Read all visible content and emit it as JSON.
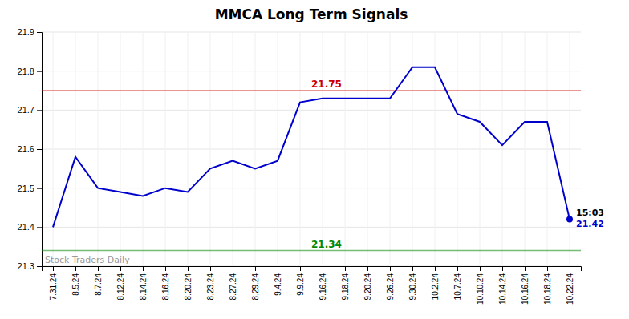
{
  "chart_data": {
    "type": "line",
    "title": "MMCA Long Term Signals",
    "categories": [
      "7.31.24",
      "8.5.24",
      "8.7.24",
      "8.12.24",
      "8.14.24",
      "8.16.24",
      "8.20.24",
      "8.23.24",
      "8.27.24",
      "8.29.24",
      "9.4.24",
      "9.9.24",
      "9.16.24",
      "9.18.24",
      "9.20.24",
      "9.26.24",
      "9.30.24",
      "10.2.24",
      "10.7.24",
      "10.10.24",
      "10.14.24",
      "10.16.24",
      "10.18.24",
      "10.22.24"
    ],
    "values": [
      21.4,
      21.58,
      21.5,
      21.49,
      21.48,
      21.5,
      21.49,
      21.55,
      21.57,
      21.55,
      21.57,
      21.72,
      21.73,
      21.73,
      21.73,
      21.73,
      21.81,
      21.81,
      21.69,
      21.67,
      21.61,
      21.67,
      21.67,
      21.42
    ],
    "color": "#0000cc",
    "reference_lines": [
      {
        "value": 21.75,
        "label": "21.75",
        "color": "#cc0000"
      },
      {
        "value": 21.34,
        "label": "21.34",
        "color": "#008800"
      }
    ],
    "annotations": [
      {
        "text": "15:03"
      },
      {
        "text": "21.42",
        "color": "#0000cc"
      },
      {
        "text": "Stock Traders Daily"
      }
    ],
    "ylim": [
      21.3,
      21.9
    ],
    "yticks": [
      21.3,
      21.4,
      21.5,
      21.6,
      21.7,
      21.8,
      21.9
    ],
    "grid": true
  }
}
